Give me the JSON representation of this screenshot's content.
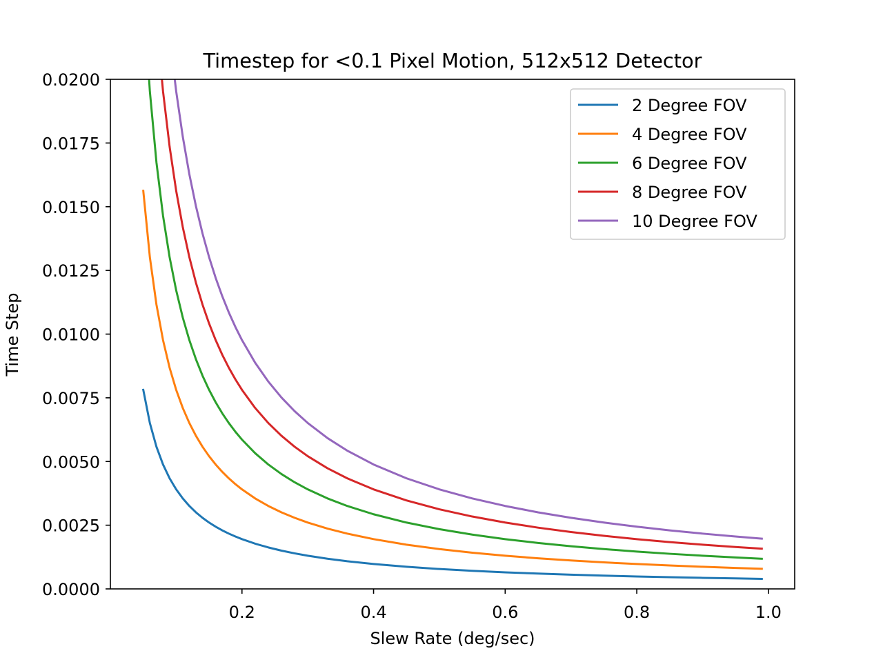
{
  "chart_data": {
    "type": "line",
    "title": "Timestep for <0.1 Pixel Motion, 512x512 Detector",
    "xlabel": "Slew Rate (deg/sec)",
    "ylabel": "Time Step",
    "xlim": [
      0.0,
      1.04
    ],
    "ylim": [
      0.0,
      0.02
    ],
    "x_ticks": [
      0.2,
      0.4,
      0.6,
      0.8,
      1.0
    ],
    "x_tick_labels": [
      "0.2",
      "0.4",
      "0.6",
      "0.8",
      "1.0"
    ],
    "y_ticks": [
      0.0,
      0.0025,
      0.005,
      0.0075,
      0.01,
      0.0125,
      0.015,
      0.0175,
      0.02
    ],
    "y_tick_labels": [
      "0.0000",
      "0.0025",
      "0.0050",
      "0.0075",
      "0.0100",
      "0.0125",
      "0.0150",
      "0.0175",
      "0.0200"
    ],
    "grid": false,
    "legend_position": "top-right",
    "x": [
      0.05,
      0.06,
      0.07,
      0.08,
      0.09,
      0.1,
      0.11,
      0.12,
      0.13,
      0.14,
      0.15,
      0.16,
      0.17,
      0.18,
      0.19,
      0.2,
      0.22,
      0.24,
      0.26,
      0.28,
      0.3,
      0.33,
      0.36,
      0.4,
      0.45,
      0.5,
      0.55,
      0.6,
      0.65,
      0.7,
      0.75,
      0.8,
      0.85,
      0.9,
      0.95,
      0.99
    ],
    "series": [
      {
        "name": "2 Degree FOV",
        "color": "#1f77b4",
        "fov": 2
      },
      {
        "name": "4 Degree FOV",
        "color": "#ff7f0e",
        "fov": 4
      },
      {
        "name": "6 Degree FOV",
        "color": "#2ca02c",
        "fov": 6
      },
      {
        "name": "8 Degree FOV",
        "color": "#d62728",
        "fov": 8
      },
      {
        "name": "10 Degree FOV",
        "color": "#9467bd",
        "fov": 10
      }
    ]
  }
}
